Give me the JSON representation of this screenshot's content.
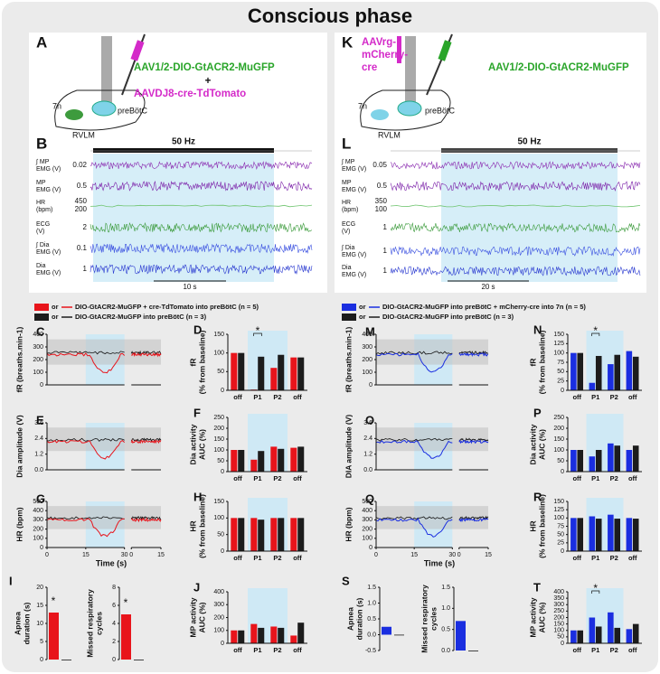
{
  "title": "Conscious phase",
  "left": {
    "schematic": {
      "label": "A",
      "virus1": "AAV1/2-DIO-GtACR2-MuGFP",
      "plus": "+",
      "virus2": "AAVDJ8-cre-TdTomato",
      "n7": "7n",
      "prebotc": "preBötC",
      "rvlm": "RVLM"
    },
    "recording": {
      "label": "B",
      "stim": "50 Hz",
      "scale": "10 s",
      "rows": [
        {
          "label": [
            "∫ MP",
            "EMG (V)"
          ],
          "ticks": [
            0.02
          ]
        },
        {
          "label": [
            "MP",
            "EMG (V)"
          ],
          "ticks": [
            0.5
          ]
        },
        {
          "label": [
            "HR",
            "(bpm)"
          ],
          "ticks": [
            450,
            200
          ]
        },
        {
          "label": [
            "ECG",
            "(V)"
          ],
          "ticks": [
            2
          ]
        },
        {
          "label": [
            "∫ Dia",
            "EMG (V)"
          ],
          "ticks": [
            0.1
          ]
        },
        {
          "label": [
            "Dia",
            "EMG (V)"
          ],
          "ticks": [
            1
          ]
        }
      ]
    },
    "legend": [
      {
        "or": "or",
        "text": "DIO-GtACR2-MuGFP + cre-TdTomato into preBötC (n = 5)",
        "color": "#e8141b"
      },
      {
        "or": "or",
        "text": "DIO-GtACR2-MuGFP into preBötC (n = 3)",
        "color": "#1c1c1c"
      }
    ],
    "trace_panels": [
      {
        "label": "C",
        "y_label": "fR (breaths.min-1)",
        "yticks": [
          0,
          100,
          200,
          300,
          400
        ],
        "ylim": [
          0,
          400
        ]
      },
      {
        "label": "E",
        "y_label": "Dia amplitude (V)",
        "yticks": [
          {
            "value": 0,
            "label": "0.0"
          },
          1.2,
          2.4,
          3.6
        ],
        "ylim": [
          0,
          3.6
        ]
      },
      {
        "label": "G",
        "y_label": "HR (bpm)",
        "yticks": [
          0,
          100,
          200,
          300,
          400,
          500
        ],
        "ylim": [
          0,
          500
        ],
        "xticks_a": [
          0,
          15,
          30
        ],
        "xticks_b": [
          0,
          15
        ],
        "xlim_a": [
          0,
          30
        ],
        "xlim_b": [
          0,
          15
        ],
        "x_label": "Time (s)"
      }
    ],
    "bar_panels": [
      {
        "label": "D",
        "y_label": [
          "fR",
          "(% from baseline)"
        ],
        "yticks": [
          0,
          50,
          100,
          150
        ],
        "ylim": [
          0,
          150
        ],
        "categories": [
          "off",
          "P1",
          "P2",
          "off"
        ],
        "series": [
          {
            "color": "#e8141b",
            "values": [
              100,
              2,
              60,
              88
            ]
          },
          {
            "color": "#1c1c1c",
            "values": [
              100,
              90,
              95,
              88
            ]
          }
        ],
        "star": "*"
      },
      {
        "label": "F",
        "y_label": [
          "Dia activity",
          "AUC (%)"
        ],
        "yticks": [
          0,
          50,
          100,
          150,
          200,
          250
        ],
        "ylim": [
          0,
          250
        ],
        "categories": [
          "off",
          "P1",
          "P2",
          "off"
        ],
        "series": [
          {
            "color": "#e8141b",
            "values": [
              100,
              55,
              115,
              110
            ]
          },
          {
            "color": "#1c1c1c",
            "values": [
              100,
              95,
              105,
              115
            ]
          }
        ]
      },
      {
        "label": "H",
        "y_label": [
          "HR",
          "(% from baseline)"
        ],
        "yticks": [
          0,
          50,
          100,
          150
        ],
        "ylim": [
          0,
          150
        ],
        "categories": [
          "off",
          "P1",
          "P2",
          "off"
        ],
        "series": [
          {
            "color": "#e8141b",
            "values": [
              100,
              100,
              100,
              100
            ]
          },
          {
            "color": "#1c1c1c",
            "values": [
              100,
              95,
              100,
              100
            ]
          }
        ]
      },
      {
        "label": "J",
        "y_label": [
          "MP activity",
          "AUC (%)"
        ],
        "yticks": [
          0,
          100,
          200,
          300,
          400
        ],
        "ylim": [
          0,
          400
        ],
        "categories": [
          "off",
          "P1",
          "P2",
          "off"
        ],
        "series": [
          {
            "color": "#e8141b",
            "values": [
              100,
              150,
              130,
              60
            ]
          },
          {
            "color": "#1c1c1c",
            "values": [
              100,
              120,
              120,
              160
            ]
          }
        ]
      }
    ],
    "apnea_panel": {
      "label": "I",
      "plots": [
        {
          "y_label": [
            "Apnea",
            "duration (s)"
          ],
          "yticks": [
            0,
            5,
            10,
            15,
            20
          ],
          "ylim": [
            0,
            20
          ],
          "values": [
            13,
            0
          ],
          "colors": [
            "#e8141b",
            "#1c1c1c"
          ],
          "star": "*"
        },
        {
          "y_label": [
            "Missed respiratory",
            "cycles"
          ],
          "yticks": [
            0,
            2,
            4,
            6,
            8
          ],
          "ylim": [
            0,
            8
          ],
          "values": [
            5,
            0
          ],
          "colors": [
            "#e8141b",
            "#1c1c1c"
          ],
          "star": "*"
        }
      ]
    }
  },
  "right": {
    "schematic": {
      "label": "K",
      "virus2": [
        "AAVrg-",
        "mCherry-",
        "cre"
      ],
      "virus1": "AAV1/2-DIO-GtACR2-MuGFP",
      "n7": "7n",
      "prebotc": "preBötC",
      "rvlm": "RVLM"
    },
    "recording": {
      "label": "L",
      "stim": "50 Hz",
      "scale": "20 s",
      "rows": [
        {
          "label": [
            "∫ MP",
            "EMG (V)"
          ],
          "ticks": [
            0.05
          ]
        },
        {
          "label": [
            "MP",
            "EMG (V)"
          ],
          "ticks": [
            0.5
          ]
        },
        {
          "label": [
            "HR",
            "(bpm)"
          ],
          "ticks": [
            350,
            100
          ]
        },
        {
          "label": [
            "ECG",
            "(V)"
          ],
          "ticks": [
            1
          ]
        },
        {
          "label": [
            "∫ Dia",
            "EMG (V)"
          ],
          "ticks": [
            1
          ]
        },
        {
          "label": [
            "Dia",
            "EMG (V)"
          ],
          "ticks": [
            1
          ]
        }
      ]
    },
    "legend": [
      {
        "or": "or",
        "text": "DIO-GtACR2-MuGFP into preBötC + mCherry-cre into 7n (n = 5)",
        "color": "#1a2ee0"
      },
      {
        "or": "or",
        "text": "DIO-GtACR2-MuGFP into preBötC (n = 3)",
        "color": "#1c1c1c"
      }
    ],
    "trace_panels": [
      {
        "label": "M",
        "y_label": "fR (breaths.min-1)",
        "yticks": [
          0,
          100,
          200,
          300,
          400
        ],
        "ylim": [
          0,
          400
        ]
      },
      {
        "label": "O",
        "y_label": "DIA amplitude (V)",
        "yticks": [
          {
            "value": 0,
            "label": "0.0"
          },
          1.2,
          2.4,
          3.6
        ],
        "ylim": [
          0,
          3.6
        ]
      },
      {
        "label": "Q",
        "y_label": "HR (bpm)",
        "yticks": [
          0,
          100,
          200,
          300,
          400,
          500
        ],
        "ylim": [
          0,
          500
        ],
        "xticks_a": [
          0,
          15,
          30
        ],
        "xticks_b": [
          0,
          15
        ],
        "xlim_a": [
          0,
          30
        ],
        "xlim_b": [
          0,
          15
        ],
        "x_label": "Time (s)"
      }
    ],
    "bar_panels": [
      {
        "label": "N",
        "y_label": [
          "fR",
          "(% from baseline)"
        ],
        "yticks": [
          0,
          25,
          50,
          75,
          100,
          125,
          150
        ],
        "ylim": [
          0,
          150
        ],
        "categories": [
          "off",
          "P1",
          "P2",
          "off"
        ],
        "series": [
          {
            "color": "#1a2ee0",
            "values": [
              100,
              20,
              70,
              105
            ]
          },
          {
            "color": "#1c1c1c",
            "values": [
              100,
              92,
              95,
              90
            ]
          }
        ],
        "star": "*"
      },
      {
        "label": "P",
        "y_label": [
          "Dia activity",
          "AUC (%)"
        ],
        "yticks": [
          0,
          50,
          100,
          150,
          200,
          250
        ],
        "ylim": [
          0,
          250
        ],
        "categories": [
          "off",
          "P1",
          "P2",
          "off"
        ],
        "series": [
          {
            "color": "#1a2ee0",
            "values": [
              100,
              70,
              130,
              100
            ]
          },
          {
            "color": "#1c1c1c",
            "values": [
              100,
              100,
              120,
              120
            ]
          }
        ]
      },
      {
        "label": "R",
        "y_label": [
          "HR",
          "(% from baseline)"
        ],
        "yticks": [
          0,
          25,
          50,
          75,
          100,
          125,
          150
        ],
        "ylim": [
          0,
          150
        ],
        "categories": [
          "off",
          "P1",
          "P2",
          "off"
        ],
        "series": [
          {
            "color": "#1a2ee0",
            "values": [
              100,
              105,
              110,
              100
            ]
          },
          {
            "color": "#1c1c1c",
            "values": [
              100,
              98,
              98,
              98
            ]
          }
        ]
      },
      {
        "label": "T",
        "y_label": [
          "MP activity",
          "AUC (%)"
        ],
        "yticks": [
          0,
          50,
          100,
          150,
          200,
          250,
          300,
          350,
          400
        ],
        "ylim": [
          0,
          400
        ],
        "categories": [
          "off",
          "P1",
          "P2",
          "off"
        ],
        "series": [
          {
            "color": "#1a2ee0",
            "values": [
              100,
              200,
              240,
              110
            ]
          },
          {
            "color": "#1c1c1c",
            "values": [
              100,
              130,
              120,
              150
            ]
          }
        ],
        "star": "*"
      }
    ],
    "apnea_panel": {
      "label": "S",
      "plots": [
        {
          "y_label": [
            "Apnea",
            "duration (s)"
          ],
          "yticks": [
            -0.5,
            {
              "value": 0,
              "label": "0.0"
            },
            0.5,
            {
              "value": 1,
              "label": "1.0"
            },
            1.5
          ],
          "ylim": [
            -0.5,
            1.5
          ],
          "values": [
            0.25,
            0
          ],
          "colors": [
            "#1a2ee0",
            "#1c1c1c"
          ]
        },
        {
          "y_label": [
            "Missed respiratory",
            "cycles"
          ],
          "yticks": [
            {
              "value": 0,
              "label": "0.0"
            },
            0.5,
            {
              "value": 1,
              "label": "1.0"
            },
            1.5
          ],
          "ylim": [
            0,
            1.5
          ],
          "values": [
            0.7,
            0
          ],
          "colors": [
            "#1a2ee0",
            "#1c1c1c"
          ]
        }
      ]
    }
  }
}
